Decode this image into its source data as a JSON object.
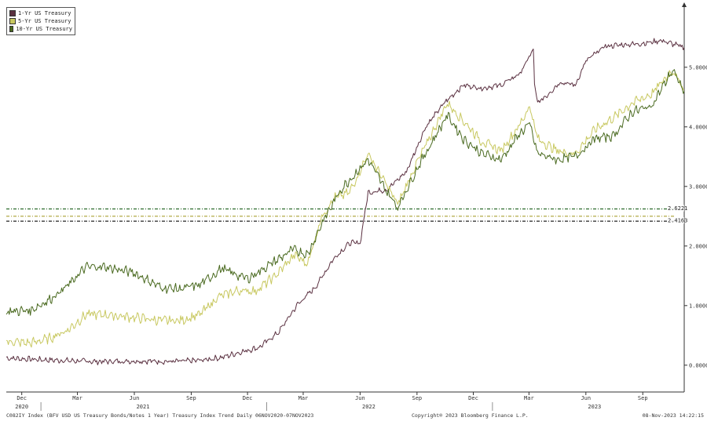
{
  "chart_data": {
    "type": "line",
    "title": "",
    "xlabel": "",
    "ylabel": "",
    "ylim": [
      -0.45,
      6.05
    ],
    "xlim": [
      "2020-11-06",
      "2023-11-07"
    ],
    "y_axis_position": "right",
    "yticks": [
      {
        "v": 0,
        "label": "0.0000"
      },
      {
        "v": 1,
        "label": "1.0000"
      },
      {
        "v": 2,
        "label": "2.0000"
      },
      {
        "v": 3,
        "label": "3.0000"
      },
      {
        "v": 4,
        "label": "4.0000"
      },
      {
        "v": 5,
        "label": "5.0000"
      }
    ],
    "month_ticks": [
      {
        "d": "2020-12-01",
        "label": "Dec"
      },
      {
        "d": "2021-03-01",
        "label": "Mar"
      },
      {
        "d": "2021-06-01",
        "label": "Jun"
      },
      {
        "d": "2021-09-01",
        "label": "Sep"
      },
      {
        "d": "2021-12-01",
        "label": "Dec"
      },
      {
        "d": "2022-03-01",
        "label": "Mar"
      },
      {
        "d": "2022-06-01",
        "label": "Jun"
      },
      {
        "d": "2022-09-01",
        "label": "Sep"
      },
      {
        "d": "2022-12-01",
        "label": "Dec"
      },
      {
        "d": "2023-03-01",
        "label": "Mar"
      },
      {
        "d": "2023-06-01",
        "label": "Jun"
      },
      {
        "d": "2023-09-01",
        "label": "Sep"
      }
    ],
    "year_ticks": [
      {
        "d": "2020-12-01",
        "label": "2020"
      },
      {
        "d": "2021-06-15",
        "label": "2021"
      },
      {
        "d": "2022-06-15",
        "label": "2022"
      },
      {
        "d": "2023-06-15",
        "label": "2023"
      }
    ],
    "year_boundaries": [
      "2021-01-01",
      "2022-01-01",
      "2023-01-01"
    ],
    "legend": "top-left",
    "series": [
      {
        "name": "1-Yr US Treasury",
        "color": "#5a3040",
        "points": [
          [
            "2020-11-06",
            0.12
          ],
          [
            "2020-12-15",
            0.1
          ],
          [
            "2021-02-01",
            0.08
          ],
          [
            "2021-04-01",
            0.06
          ],
          [
            "2021-06-15",
            0.07
          ],
          [
            "2021-08-01",
            0.06
          ],
          [
            "2021-09-15",
            0.08
          ],
          [
            "2021-10-20",
            0.13
          ],
          [
            "2021-11-20",
            0.22
          ],
          [
            "2021-12-20",
            0.3
          ],
          [
            "2022-01-20",
            0.55
          ],
          [
            "2022-02-20",
            1.02
          ],
          [
            "2022-03-20",
            1.3
          ],
          [
            "2022-04-20",
            1.8
          ],
          [
            "2022-05-15",
            2.05
          ],
          [
            "2022-06-01",
            2.05
          ],
          [
            "2022-06-14",
            2.9
          ],
          [
            "2022-07-15",
            2.95
          ],
          [
            "2022-08-15",
            3.25
          ],
          [
            "2022-09-15",
            4.0
          ],
          [
            "2022-10-15",
            4.4
          ],
          [
            "2022-11-15",
            4.7
          ],
          [
            "2022-12-15",
            4.65
          ],
          [
            "2023-01-15",
            4.7
          ],
          [
            "2023-02-15",
            4.9
          ],
          [
            "2023-03-08",
            5.3
          ],
          [
            "2023-03-10",
            4.7
          ],
          [
            "2023-03-15",
            4.4
          ],
          [
            "2023-04-01",
            4.55
          ],
          [
            "2023-04-20",
            4.75
          ],
          [
            "2023-05-15",
            4.7
          ],
          [
            "2023-06-01",
            5.1
          ],
          [
            "2023-07-01",
            5.35
          ],
          [
            "2023-08-01",
            5.38
          ],
          [
            "2023-09-01",
            5.4
          ],
          [
            "2023-10-01",
            5.45
          ],
          [
            "2023-11-07",
            5.33
          ]
        ]
      },
      {
        "name": "5-Yr US Treasury",
        "color": "#c8c860",
        "points": [
          [
            "2020-11-06",
            0.4
          ],
          [
            "2020-12-15",
            0.37
          ],
          [
            "2021-01-15",
            0.45
          ],
          [
            "2021-02-15",
            0.6
          ],
          [
            "2021-03-15",
            0.85
          ],
          [
            "2021-04-15",
            0.85
          ],
          [
            "2021-06-01",
            0.8
          ],
          [
            "2021-07-15",
            0.75
          ],
          [
            "2021-08-15",
            0.75
          ],
          [
            "2021-09-15",
            0.85
          ],
          [
            "2021-10-15",
            1.15
          ],
          [
            "2021-11-15",
            1.25
          ],
          [
            "2021-12-15",
            1.25
          ],
          [
            "2022-01-15",
            1.5
          ],
          [
            "2022-02-15",
            1.85
          ],
          [
            "2022-03-08",
            1.7
          ],
          [
            "2022-03-31",
            2.5
          ],
          [
            "2022-04-20",
            2.8
          ],
          [
            "2022-05-15",
            2.9
          ],
          [
            "2022-06-14",
            3.55
          ],
          [
            "2022-07-15",
            3.0
          ],
          [
            "2022-08-01",
            2.7
          ],
          [
            "2022-09-01",
            3.4
          ],
          [
            "2022-10-20",
            4.4
          ],
          [
            "2022-11-15",
            4.1
          ],
          [
            "2022-12-15",
            3.75
          ],
          [
            "2023-01-15",
            3.6
          ],
          [
            "2023-02-15",
            4.05
          ],
          [
            "2023-03-02",
            4.35
          ],
          [
            "2023-03-15",
            3.8
          ],
          [
            "2023-04-15",
            3.6
          ],
          [
            "2023-05-15",
            3.55
          ],
          [
            "2023-06-15",
            3.95
          ],
          [
            "2023-07-15",
            4.15
          ],
          [
            "2023-08-15",
            4.4
          ],
          [
            "2023-09-15",
            4.55
          ],
          [
            "2023-10-19",
            4.95
          ],
          [
            "2023-11-07",
            4.62
          ]
        ]
      },
      {
        "name": "10-Yr US Treasury",
        "color": "#4a6a20",
        "points": [
          [
            "2020-11-06",
            0.9
          ],
          [
            "2020-12-15",
            0.92
          ],
          [
            "2021-01-15",
            1.1
          ],
          [
            "2021-02-15",
            1.35
          ],
          [
            "2021-03-15",
            1.65
          ],
          [
            "2021-04-15",
            1.65
          ],
          [
            "2021-06-01",
            1.55
          ],
          [
            "2021-07-15",
            1.3
          ],
          [
            "2021-08-15",
            1.28
          ],
          [
            "2021-09-15",
            1.35
          ],
          [
            "2021-10-20",
            1.62
          ],
          [
            "2021-12-01",
            1.45
          ],
          [
            "2022-01-15",
            1.75
          ],
          [
            "2022-02-15",
            1.95
          ],
          [
            "2022-03-08",
            1.85
          ],
          [
            "2022-04-01",
            2.4
          ],
          [
            "2022-05-01",
            2.95
          ],
          [
            "2022-06-14",
            3.45
          ],
          [
            "2022-07-15",
            2.9
          ],
          [
            "2022-08-01",
            2.65
          ],
          [
            "2022-09-01",
            3.3
          ],
          [
            "2022-10-20",
            4.2
          ],
          [
            "2022-11-15",
            3.8
          ],
          [
            "2022-12-15",
            3.55
          ],
          [
            "2023-01-15",
            3.45
          ],
          [
            "2023-02-15",
            3.9
          ],
          [
            "2023-03-02",
            4.05
          ],
          [
            "2023-03-15",
            3.55
          ],
          [
            "2023-04-15",
            3.45
          ],
          [
            "2023-05-15",
            3.5
          ],
          [
            "2023-06-15",
            3.8
          ],
          [
            "2023-07-15",
            3.85
          ],
          [
            "2023-08-15",
            4.25
          ],
          [
            "2023-09-15",
            4.35
          ],
          [
            "2023-10-19",
            4.95
          ],
          [
            "2023-11-07",
            4.6
          ]
        ]
      }
    ],
    "reference_lines": [
      {
        "value": 2.6221,
        "label": "2.6221",
        "color": "#2a6a2a",
        "dash": "4,2,1,2"
      },
      {
        "value": 2.5,
        "label": "",
        "color": "#a8a030",
        "dash": "4,2,1,2"
      },
      {
        "value": 2.4163,
        "label": "2.4163",
        "color": "#222222",
        "dash": "4,2,1,2"
      }
    ]
  },
  "footer": {
    "left": "C082IY Index (BFV USD US Treasury Bonds/Notes 1 Year) Treasury Index Trend  Daily 06NOV2020-07NOV2023",
    "center": "Copyright® 2023 Bloomberg Finance L.P.",
    "right": "08-Nov-2023 14:22:15"
  }
}
